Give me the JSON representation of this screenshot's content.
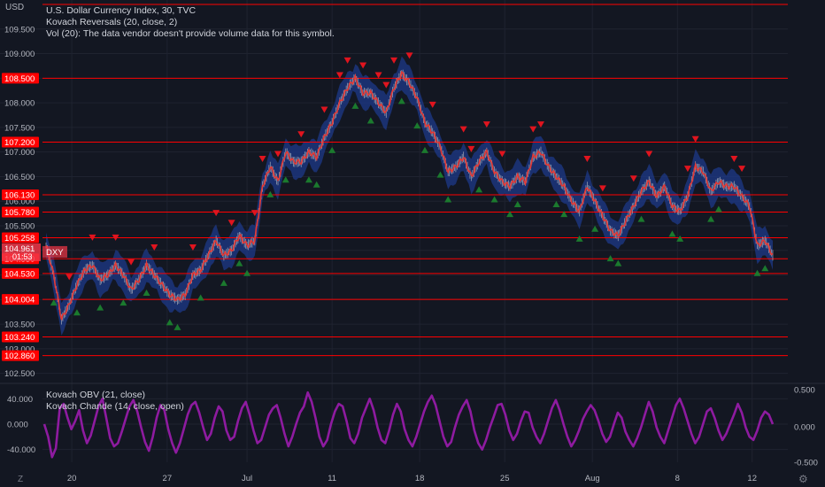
{
  "header": {
    "currency_label": "USD",
    "title": "U.S. Dollar Currency Index, 30, TVC",
    "indicator": "Kovach Reversals (20, close, 2)",
    "volume_note": "Vol (20): The data vendor doesn't provide volume data for this symbol."
  },
  "lower_pane": {
    "indicator1": "Kovach OBV (21, close)",
    "indicator2": "Kovach Chande (14, close, open)"
  },
  "footer": {
    "scale_mode": "Z",
    "settings_icon": "gear-icon"
  },
  "colors": {
    "background": "#131722",
    "level_line": "#ff0000",
    "price_line": "#e53935",
    "candle": "#b2b5be",
    "band": "#1e3a8a",
    "up_arrow": "#1b7a2e",
    "down_arrow": "#e0141e",
    "oscillator": "#8e1ba0",
    "axis_text": "#b2b5be"
  },
  "chart_data": [
    {
      "type": "line",
      "symbol": "DXY",
      "title": "U.S. Dollar Currency Index, 30, TVC",
      "x_ticks": [
        "20",
        "27",
        "Jul",
        "11",
        "18",
        "25",
        "Aug",
        "8",
        "12"
      ],
      "y_ticks": [
        "102.500",
        "103.000",
        "103.500",
        "104.000",
        "104.500",
        "105.000",
        "105.500",
        "106.000",
        "106.500",
        "107.000",
        "107.500",
        "108.000",
        "108.500",
        "109.000",
        "109.500"
      ],
      "ylim": [
        102.35,
        110.0
      ],
      "level_lines": [
        "110.000",
        "108.500",
        "107.200",
        "106.130",
        "105.780",
        "105.258",
        "104.830",
        "104.530",
        "104.004",
        "103.240",
        "102.860"
      ],
      "current_price": {
        "symbol": "DXY",
        "value": "104.961",
        "countdown": "01:53"
      },
      "price_series": [
        [
          0,
          105.1
        ],
        [
          3,
          104.5
        ],
        [
          6,
          103.6
        ],
        [
          9,
          103.9
        ],
        [
          12,
          104.3
        ],
        [
          15,
          104.6
        ],
        [
          18,
          104.7
        ],
        [
          21,
          104.4
        ],
        [
          24,
          104.5
        ],
        [
          27,
          104.7
        ],
        [
          30,
          104.5
        ],
        [
          33,
          104.2
        ],
        [
          36,
          104.4
        ],
        [
          39,
          104.7
        ],
        [
          42,
          104.5
        ],
        [
          45,
          104.3
        ],
        [
          48,
          104.1
        ],
        [
          51,
          104.0
        ],
        [
          54,
          104.1
        ],
        [
          57,
          104.5
        ],
        [
          60,
          104.6
        ],
        [
          63,
          104.9
        ],
        [
          66,
          105.2
        ],
        [
          69,
          104.9
        ],
        [
          72,
          105.0
        ],
        [
          75,
          105.3
        ],
        [
          78,
          105.1
        ],
        [
          81,
          105.2
        ],
        [
          84,
          106.3
        ],
        [
          87,
          106.7
        ],
        [
          90,
          106.4
        ],
        [
          93,
          107.0
        ],
        [
          96,
          106.8
        ],
        [
          99,
          106.8
        ],
        [
          102,
          107.0
        ],
        [
          105,
          106.9
        ],
        [
          108,
          107.3
        ],
        [
          111,
          107.6
        ],
        [
          114,
          108.0
        ],
        [
          117,
          108.3
        ],
        [
          120,
          108.5
        ],
        [
          123,
          108.2
        ],
        [
          126,
          108.2
        ],
        [
          129,
          108.0
        ],
        [
          132,
          107.8
        ],
        [
          135,
          108.3
        ],
        [
          138,
          108.6
        ],
        [
          141,
          108.4
        ],
        [
          144,
          108.1
        ],
        [
          147,
          107.6
        ],
        [
          150,
          107.4
        ],
        [
          153,
          107.1
        ],
        [
          156,
          106.6
        ],
        [
          159,
          106.7
        ],
        [
          162,
          106.9
        ],
        [
          165,
          106.5
        ],
        [
          168,
          106.8
        ],
        [
          171,
          107.0
        ],
        [
          174,
          106.6
        ],
        [
          177,
          106.4
        ],
        [
          180,
          106.3
        ],
        [
          183,
          106.5
        ],
        [
          186,
          106.4
        ],
        [
          189,
          106.9
        ],
        [
          192,
          107.0
        ],
        [
          195,
          106.7
        ],
        [
          198,
          106.5
        ],
        [
          201,
          106.3
        ],
        [
          204,
          106.0
        ],
        [
          207,
          105.8
        ],
        [
          210,
          106.3
        ],
        [
          213,
          106.0
        ],
        [
          216,
          105.7
        ],
        [
          219,
          105.4
        ],
        [
          222,
          105.3
        ],
        [
          225,
          105.6
        ],
        [
          228,
          105.9
        ],
        [
          231,
          106.2
        ],
        [
          234,
          106.4
        ],
        [
          237,
          106.1
        ],
        [
          240,
          106.3
        ],
        [
          243,
          105.9
        ],
        [
          246,
          105.8
        ],
        [
          249,
          106.1
        ],
        [
          252,
          106.7
        ],
        [
          255,
          106.6
        ],
        [
          258,
          106.2
        ],
        [
          261,
          106.4
        ],
        [
          264,
          106.3
        ],
        [
          267,
          106.3
        ],
        [
          270,
          106.1
        ],
        [
          273,
          105.9
        ],
        [
          276,
          105.1
        ],
        [
          279,
          105.2
        ],
        [
          282,
          104.9
        ]
      ],
      "down_reversals": [
        9,
        18,
        27,
        33,
        42,
        57,
        66,
        72,
        81,
        84,
        90,
        99,
        108,
        114,
        117,
        123,
        129,
        132,
        135,
        141,
        150,
        162,
        165,
        171,
        177,
        189,
        192,
        210,
        216,
        228,
        234,
        249,
        252,
        267,
        270
      ],
      "up_reversals": [
        3,
        12,
        21,
        30,
        39,
        48,
        51,
        60,
        69,
        75,
        78,
        87,
        93,
        102,
        105,
        111,
        120,
        126,
        138,
        144,
        147,
        153,
        156,
        168,
        174,
        180,
        183,
        198,
        201,
        207,
        213,
        219,
        222,
        231,
        243,
        246,
        258,
        261,
        276,
        279
      ],
      "lower_pane": {
        "yticks": [
          "40.000",
          "0.000",
          "-40.000"
        ],
        "ylim": [
          -60,
          60
        ],
        "yticks_right": [
          "0.500",
          "0.000",
          "-0.500"
        ],
        "series": [
          {
            "name": "Kovach OBV (21, close)",
            "values": [
              0,
              -20,
              -52,
              -38,
              25,
              32,
              10,
              -8,
              5,
              22,
              -10,
              -30,
              -18,
              5,
              28,
              40,
              10,
              -22,
              -35,
              -30,
              -12,
              8,
              28,
              38,
              20,
              -5,
              -28,
              -42,
              -20,
              10,
              30,
              22,
              -8,
              -30,
              -45,
              -30,
              -8,
              15,
              30,
              35,
              18,
              -5,
              -25,
              -15,
              10,
              28,
              20,
              -10,
              -25,
              -20,
              5,
              25,
              35,
              15,
              -10,
              -30,
              -25,
              -5,
              15,
              25,
              30,
              10,
              -15,
              -35,
              -20,
              0,
              18,
              28,
              50,
              35,
              10,
              -20,
              -35,
              -25,
              0,
              20,
              32,
              28,
              5,
              -22,
              -30,
              -15,
              10,
              25,
              40,
              22,
              -5,
              -25,
              -30,
              -10,
              15,
              32,
              20,
              -8,
              -25,
              -35,
              -20,
              0,
              20,
              35,
              45,
              30,
              5,
              -20,
              -35,
              -28,
              -5,
              15,
              28,
              38,
              20,
              -10,
              -30,
              -40,
              -25,
              -5,
              12,
              30,
              32,
              15,
              -10,
              -25,
              -15,
              5,
              20,
              18,
              -5,
              -20,
              -30,
              -15,
              5,
              25,
              38,
              22,
              0,
              -20,
              -35,
              -25,
              -10,
              8,
              20,
              30,
              22,
              5,
              -15,
              -28,
              -20,
              0,
              18,
              10,
              -12,
              -25,
              -35,
              -22,
              -5,
              15,
              35,
              20,
              -5,
              -20,
              -30,
              -10,
              10,
              30,
              40,
              25,
              5,
              -15,
              -30,
              -20,
              0,
              20,
              25,
              10,
              -10,
              -25,
              -15,
              0,
              15,
              32,
              18,
              -5,
              -20,
              -25,
              -10,
              10,
              20,
              15,
              0
            ]
          }
        ]
      }
    }
  ]
}
